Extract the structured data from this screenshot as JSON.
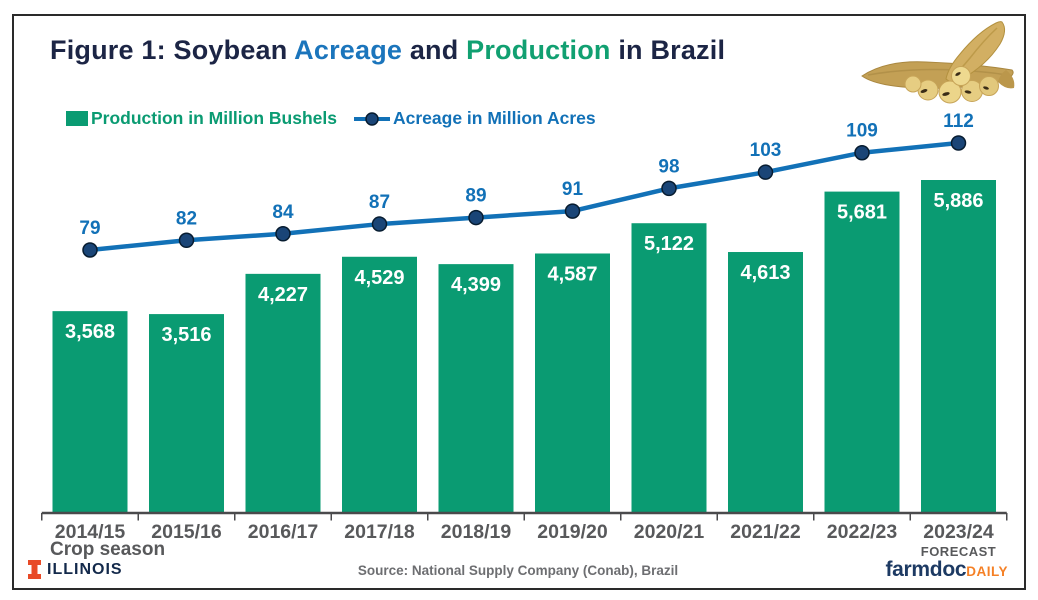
{
  "title": {
    "part1": "Figure 1: Soybean ",
    "acreage": "Acreage",
    "part2": " and ",
    "production": "Production",
    "part3": " in Brazil"
  },
  "header_image": "soybean-pods-photo",
  "legend": {
    "production_label": "Production in Million Bushels",
    "acreage_label": "Acreage in Million Acres"
  },
  "chart_data": {
    "type": "bar+line",
    "categories": [
      "2014/15",
      "2015/16",
      "2016/17",
      "2017/18",
      "2018/19",
      "2019/20",
      "2020/21",
      "2021/22",
      "2022/23",
      "2023/24"
    ],
    "forecast_index": 9,
    "forecast_label": "FORECAST",
    "xlabel": "Crop season",
    "series": [
      {
        "name": "Production in Million Bushels",
        "type": "bar",
        "color": "#0a9b72",
        "values": [
          3568,
          3516,
          4227,
          4529,
          4399,
          4587,
          5122,
          4613,
          5681,
          5886
        ]
      },
      {
        "name": "Acreage in Million Acres",
        "type": "line",
        "color": "#1271b7",
        "marker_color": "#1a4577",
        "values": [
          79,
          82,
          84,
          87,
          89,
          91,
          98,
          103,
          109,
          112
        ]
      }
    ],
    "bar_axis_range": [
      0,
      6200
    ],
    "line_axis_range": [
      0,
      120
    ],
    "value_labels_shown": true,
    "gridlines": false,
    "legend_position": "top-left",
    "y_axis_shown": false
  },
  "footer": {
    "source": "Source: National Supply Company (Conab), Brazil",
    "illinois": "ILLINOIS",
    "farmdoc": "farmdoc",
    "daily": "DAILY"
  },
  "colors": {
    "bar_green": "#0a9b72",
    "line_blue": "#1271b7",
    "marker_navy": "#1a4577",
    "marker_outline": "#071c30",
    "title_navy": "#1c2545",
    "title_blue": "#1b75bc",
    "title_green": "#11a071",
    "bar_label_white": "#ffffff",
    "axis_gray": "#4a4a4c",
    "category_label_gray": "#58595b",
    "source_gray": "#6d6e71",
    "illinois_orange": "#e84a27",
    "illinois_navy": "#13294b",
    "farmdoc_navy": "#1d3a63",
    "daily_orange": "#f58025"
  }
}
